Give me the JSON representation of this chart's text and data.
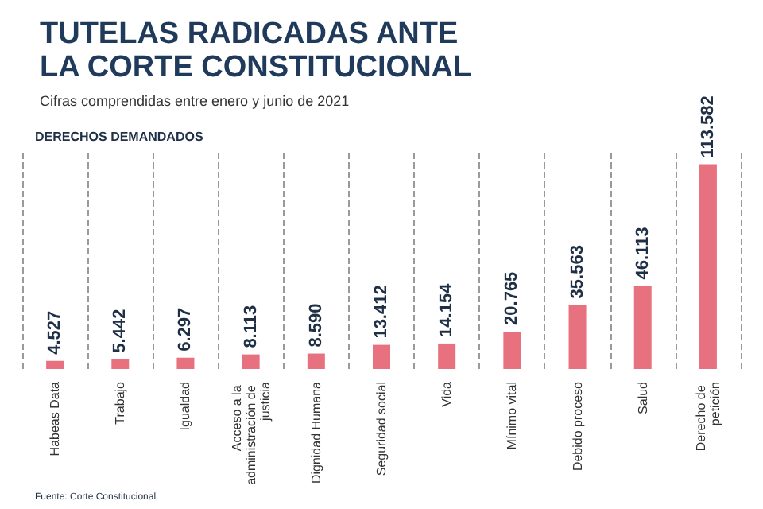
{
  "chart_data": {
    "type": "bar",
    "title": "TUTELAS RADICADAS ANTE LA CORTE CONSTITUCIONAL",
    "subtitle": "Cifras comprendidas entre enero y junio de 2021",
    "annotations": [
      "DERECHOS DEMANDADOS",
      "Fuente: Corte Constitucional"
    ],
    "categories": [
      "Habeas Data",
      "Trabajo",
      "Igualdad",
      "Acceso a la administración de justicia",
      "Dignidad Humana",
      "Seguridad social",
      "Vida",
      "Mínimo vital",
      "Debido proceso",
      "Salud",
      "Derecho de petición"
    ],
    "values": [
      4527,
      5442,
      6297,
      8113,
      8590,
      13412,
      14154,
      20765,
      35563,
      46113,
      113582
    ],
    "value_labels": [
      "4.527",
      "5.442",
      "6.297",
      "8.113",
      "8.590",
      "13.412",
      "14.154",
      "20.765",
      "35.563",
      "46.113",
      "113.582"
    ],
    "color": "#e8717f",
    "grid": "x"
  }
}
